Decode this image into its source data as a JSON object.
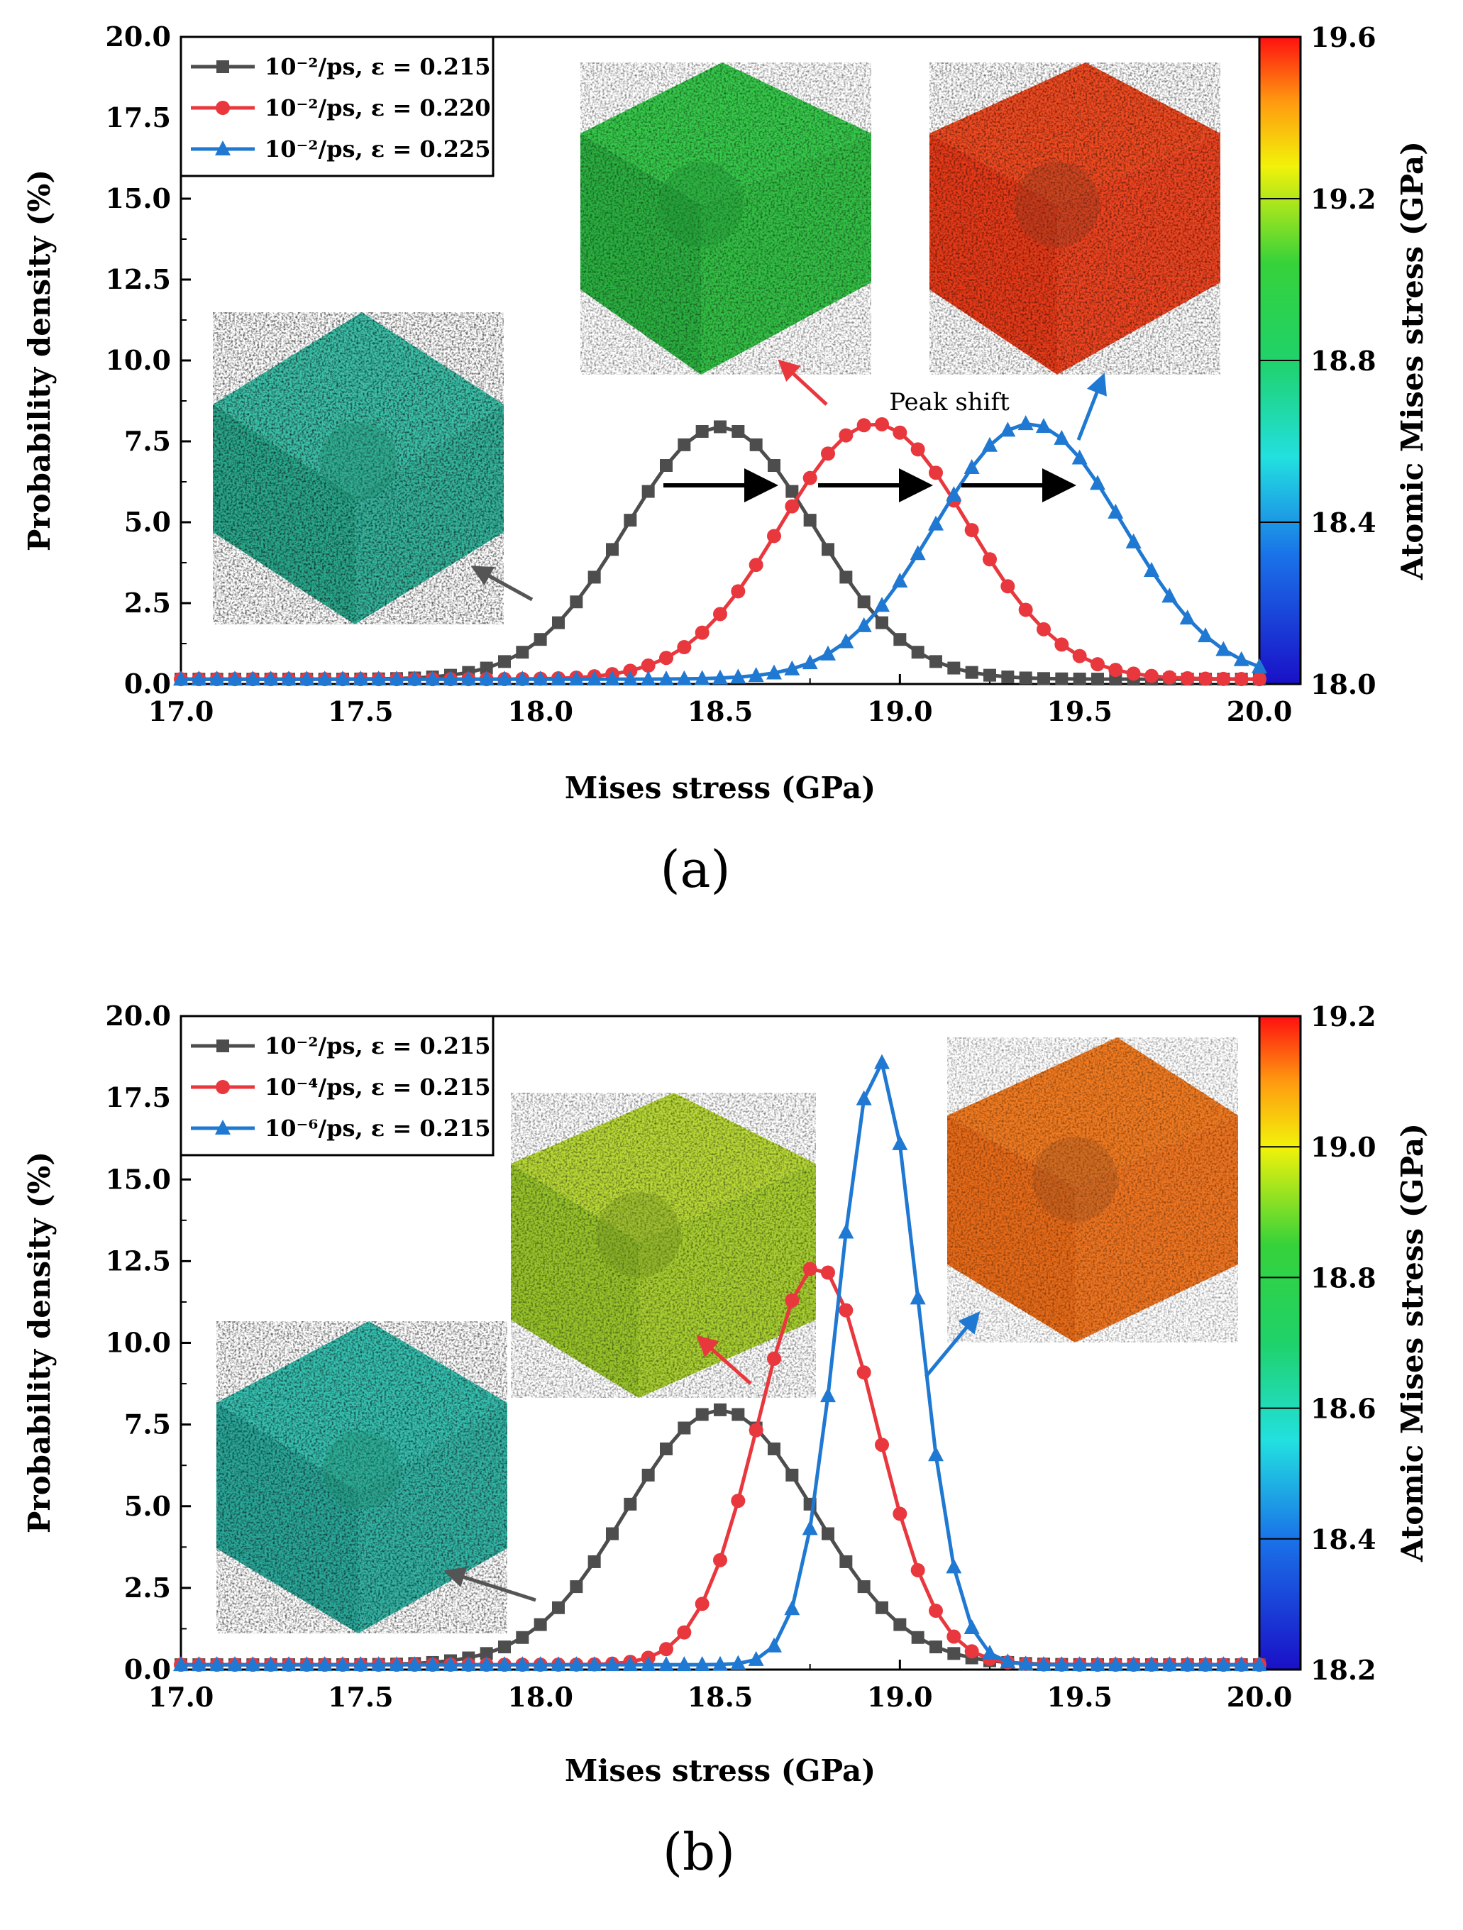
{
  "figure": {
    "panels": [
      "(a)",
      "(b)"
    ]
  },
  "chart_data": [
    {
      "type": "line",
      "panel": "(a)",
      "xlabel": "Mises stress (GPa)",
      "ylabel": "Probability density (%)",
      "xlim": [
        17.0,
        20.0
      ],
      "ylim": [
        0,
        20.0
      ],
      "xticks": [
        "17.0",
        "17.5",
        "18.0",
        "18.5",
        "19.0",
        "19.5",
        "20.0"
      ],
      "yticks": [
        "0.0",
        "2.5",
        "5.0",
        "7.5",
        "10.0",
        "12.5",
        "15.0",
        "17.5",
        "20.0"
      ],
      "colorbar": {
        "label": "Atomic Mises stress (GPa)",
        "ticks": [
          "18.0",
          "18.4",
          "18.8",
          "19.2",
          "19.6"
        ],
        "range": [
          18.0,
          19.6
        ]
      },
      "annotations": [
        "Peak shift"
      ],
      "legend_location": "top-left",
      "series": [
        {
          "name": "10⁻²/ps, ε = 0.215",
          "color": "#4d4d4d",
          "marker": "square",
          "mu": 18.5,
          "sigma": 0.26,
          "peak": 7.8
        },
        {
          "name": "10⁻²/ps, ε = 0.220",
          "color": "#e8373d",
          "marker": "circle",
          "mu": 18.93,
          "sigma": 0.26,
          "peak": 7.9
        },
        {
          "name": "10⁻²/ps, ε = 0.225",
          "color": "#1f78d1",
          "marker": "triangle",
          "mu": 19.36,
          "sigma": 0.26,
          "peak": 7.9
        }
      ]
    },
    {
      "type": "line",
      "panel": "(b)",
      "xlabel": "Mises stress (GPa)",
      "ylabel": "Probability density (%)",
      "xlim": [
        17.0,
        20.0
      ],
      "ylim": [
        0,
        20.0
      ],
      "xticks": [
        "17.0",
        "17.5",
        "18.0",
        "18.5",
        "19.0",
        "19.5",
        "20.0"
      ],
      "yticks": [
        "0.0",
        "2.5",
        "5.0",
        "7.5",
        "10.0",
        "12.5",
        "15.0",
        "17.5",
        "20.0"
      ],
      "colorbar": {
        "label": "Atomic Mises stress (GPa)",
        "ticks": [
          "18.2",
          "18.4",
          "18.6",
          "18.8",
          "19.0",
          "19.2"
        ],
        "range": [
          18.2,
          19.2
        ]
      },
      "annotations": [],
      "legend_location": "top-left",
      "series": [
        {
          "name": "10⁻²/ps, ε = 0.215",
          "color": "#4d4d4d",
          "marker": "square",
          "mu": 18.5,
          "sigma": 0.26,
          "peak": 7.8
        },
        {
          "name": "10⁻⁴/ps, ε = 0.215",
          "color": "#e8373d",
          "marker": "circle",
          "mu": 18.77,
          "sigma": 0.165,
          "peak": 12.2
        },
        {
          "name": "10⁻⁶/ps, ε = 0.215",
          "color": "#1f78d1",
          "marker": "triangle",
          "mu": 18.94,
          "sigma": 0.11,
          "peak": 18.5
        }
      ]
    }
  ]
}
